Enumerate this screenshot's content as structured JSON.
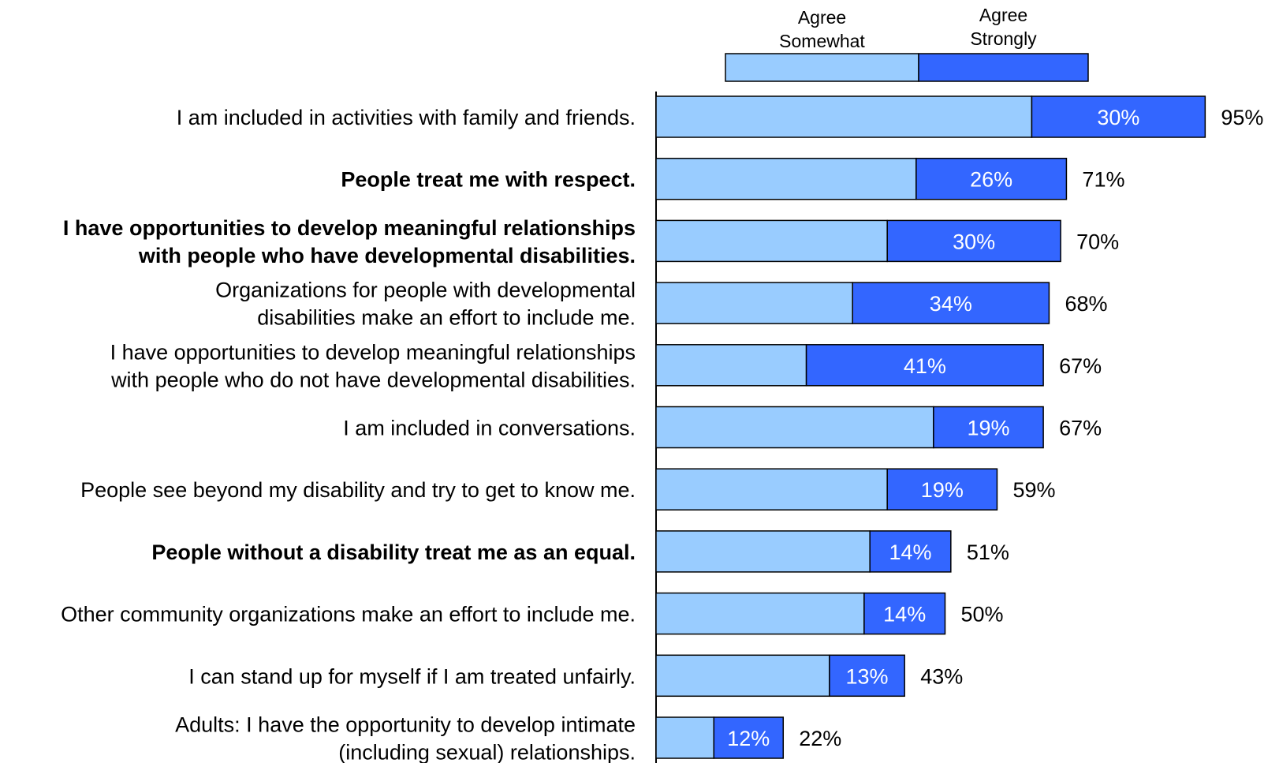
{
  "chart_data": {
    "type": "bar",
    "orientation": "horizontal",
    "stacked": true,
    "title": "",
    "xlabel": "",
    "ylabel": "",
    "xlim": [
      0,
      100
    ],
    "grid": false,
    "legend_position": "top",
    "colors": {
      "somewhat": "#99CCFF",
      "strongly": "#3366FF",
      "outline": "#000000"
    },
    "legend": [
      {
        "name_lines": [
          "Agree",
          "Somewhat"
        ],
        "color": "#99CCFF"
      },
      {
        "name_lines": [
          "Agree",
          "Strongly"
        ],
        "color": "#3366FF"
      }
    ],
    "categories": [
      {
        "lines": [
          "I am included in activities with family and friends."
        ],
        "bold": false,
        "somewhat": 65,
        "strongly": 30,
        "strongly_label": "30%",
        "total_label": "95%"
      },
      {
        "lines": [
          "People treat me with respect."
        ],
        "bold": true,
        "somewhat": 45,
        "strongly": 26,
        "strongly_label": "26%",
        "total_label": "71%"
      },
      {
        "lines": [
          "I have opportunities to develop meaningful relationships",
          "with people who have developmental disabilities."
        ],
        "bold": true,
        "somewhat": 40,
        "strongly": 30,
        "strongly_label": "30%",
        "total_label": "70%"
      },
      {
        "lines": [
          "Organizations for people with developmental",
          "disabilities make an effort to include me."
        ],
        "bold": false,
        "somewhat": 34,
        "strongly": 34,
        "strongly_label": "34%",
        "total_label": "68%"
      },
      {
        "lines": [
          "I have opportunities to develop meaningful relationships",
          "with people who do not have developmental disabilities."
        ],
        "bold": false,
        "somewhat": 26,
        "strongly": 41,
        "strongly_label": "41%",
        "total_label": "67%"
      },
      {
        "lines": [
          "I am included in conversations."
        ],
        "bold": false,
        "somewhat": 48,
        "strongly": 19,
        "strongly_label": "19%",
        "total_label": "67%"
      },
      {
        "lines": [
          "People see beyond my disability and try to get to know me."
        ],
        "bold": false,
        "somewhat": 40,
        "strongly": 19,
        "strongly_label": "19%",
        "total_label": "59%"
      },
      {
        "lines": [
          "People without a disability treat me as an equal."
        ],
        "bold": true,
        "somewhat": 37,
        "strongly": 14,
        "strongly_label": "14%",
        "total_label": "51%"
      },
      {
        "lines": [
          "Other community organizations make an effort to include me."
        ],
        "bold": false,
        "somewhat": 36,
        "strongly": 14,
        "strongly_label": "14%",
        "total_label": "50%"
      },
      {
        "lines": [
          "I can stand up for myself if I am treated unfairly."
        ],
        "bold": false,
        "somewhat": 30,
        "strongly": 13,
        "strongly_label": "13%",
        "total_label": "43%"
      },
      {
        "lines": [
          "Adults:  I have the opportunity to develop intimate",
          "(including sexual) relationships."
        ],
        "bold": false,
        "somewhat": 10,
        "strongly": 12,
        "strongly_label": "12%",
        "total_label": "22%"
      }
    ]
  }
}
